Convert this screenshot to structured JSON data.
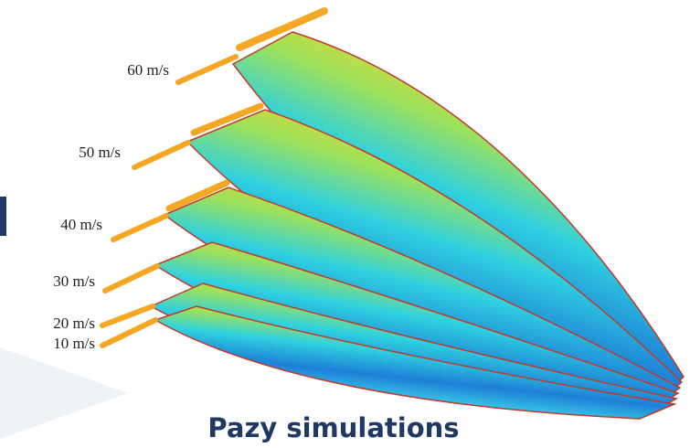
{
  "figure": {
    "labels": [
      "60 m/s",
      "50 m/s",
      "40 m/s",
      "30 m/s",
      "20 m/s",
      "10 m/s"
    ],
    "caption": "Pazy simulations"
  }
}
